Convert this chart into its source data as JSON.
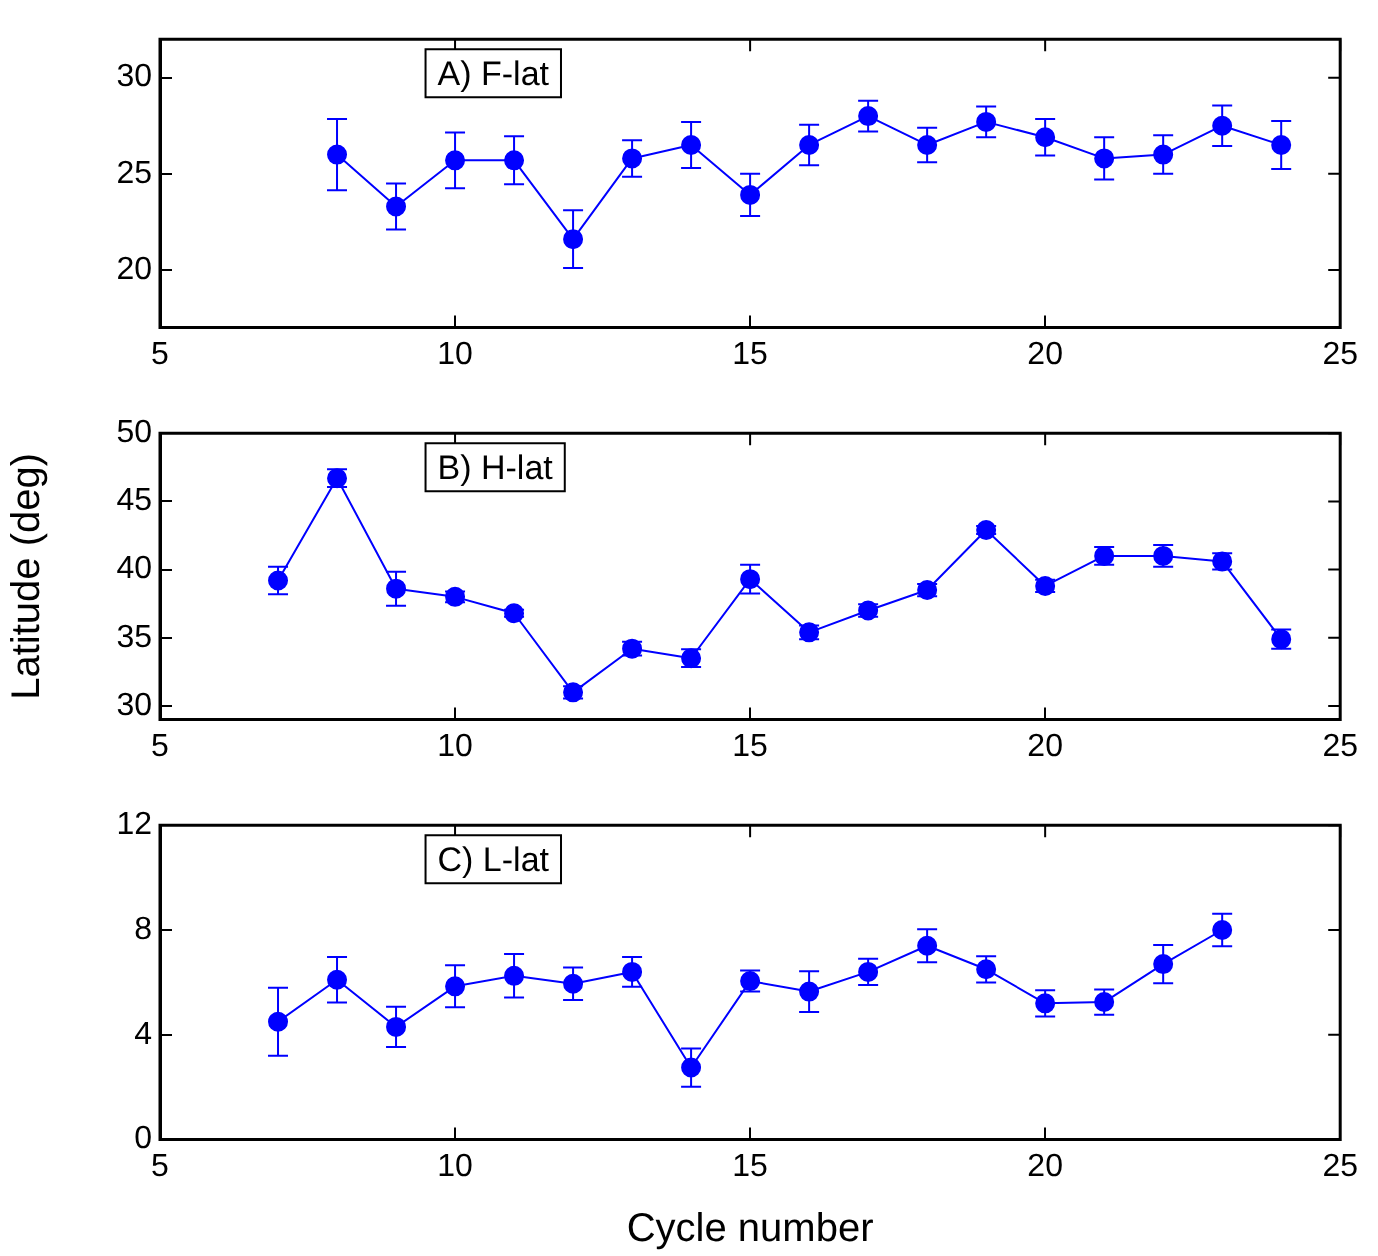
{
  "chart_data": [
    {
      "type": "line",
      "annotations": [
        "A) F-lat"
      ],
      "x": [
        8,
        9,
        10,
        11,
        12,
        13,
        14,
        15,
        16,
        17,
        18,
        19,
        20,
        21,
        22,
        23,
        24
      ],
      "series": [
        {
          "color": "#0000ff",
          "values": [
            26.0,
            23.3,
            25.7,
            25.7,
            21.6,
            25.8,
            26.5,
            23.9,
            26.5,
            28.0,
            26.5,
            27.7,
            26.9,
            25.8,
            26.0,
            27.5,
            26.5
          ],
          "errors": [
            1.85,
            1.2,
            1.45,
            1.25,
            1.5,
            0.95,
            1.2,
            1.1,
            1.05,
            0.8,
            0.9,
            0.8,
            0.95,
            1.1,
            1.0,
            1.05,
            1.25
          ]
        }
      ],
      "xlim": [
        5,
        25
      ],
      "xticks": [
        5,
        10,
        15,
        20,
        25
      ],
      "ylim": [
        17,
        32
      ],
      "yticks": [
        20,
        25,
        30
      ],
      "grid": false,
      "legend": false,
      "marker": "circle",
      "line_style": "solid"
    },
    {
      "type": "line",
      "ylabel": "Latitude (deg)",
      "annotations": [
        "B) H-lat"
      ],
      "x": [
        7,
        8,
        9,
        10,
        11,
        12,
        13,
        14,
        15,
        16,
        17,
        18,
        19,
        20,
        21,
        22,
        23,
        24
      ],
      "series": [
        {
          "color": "#0000ff",
          "values": [
            39.2,
            46.7,
            38.6,
            38.0,
            36.8,
            31.0,
            34.2,
            33.5,
            39.3,
            35.4,
            37.0,
            38.5,
            42.9,
            38.8,
            41.0,
            41.0,
            40.6,
            34.9
          ],
          "errors": [
            1.0,
            0.65,
            1.25,
            0.4,
            0.25,
            0.45,
            0.5,
            0.65,
            1.05,
            0.5,
            0.45,
            0.45,
            0.3,
            0.45,
            0.65,
            0.8,
            0.6,
            0.7
          ]
        }
      ],
      "xlim": [
        5,
        25
      ],
      "xticks": [
        5,
        10,
        15,
        20,
        25
      ],
      "ylim": [
        29,
        50
      ],
      "yticks": [
        30,
        35,
        40,
        45,
        50
      ],
      "grid": false,
      "legend": false,
      "marker": "circle",
      "line_style": "solid"
    },
    {
      "type": "line",
      "xlabel": "Cycle number",
      "annotations": [
        "C) L-lat"
      ],
      "x": [
        7,
        8,
        9,
        10,
        11,
        12,
        13,
        14,
        15,
        16,
        17,
        18,
        19,
        20,
        21,
        22,
        23
      ],
      "series": [
        {
          "color": "#0000ff",
          "values": [
            4.5,
            6.1,
            4.3,
            5.85,
            6.25,
            5.95,
            6.4,
            2.75,
            6.05,
            5.65,
            6.4,
            7.4,
            6.5,
            5.2,
            5.25,
            6.7,
            8.0
          ],
          "errors": [
            1.3,
            0.87,
            0.77,
            0.8,
            0.83,
            0.62,
            0.57,
            0.73,
            0.4,
            0.78,
            0.5,
            0.63,
            0.5,
            0.5,
            0.48,
            0.73,
            0.62
          ]
        }
      ],
      "xlim": [
        5,
        25
      ],
      "xticks": [
        5,
        10,
        15,
        20,
        25
      ],
      "ylim": [
        0,
        12
      ],
      "yticks": [
        0,
        4,
        8,
        12
      ],
      "grid": false,
      "legend": false,
      "marker": "circle",
      "line_style": "solid"
    }
  ]
}
